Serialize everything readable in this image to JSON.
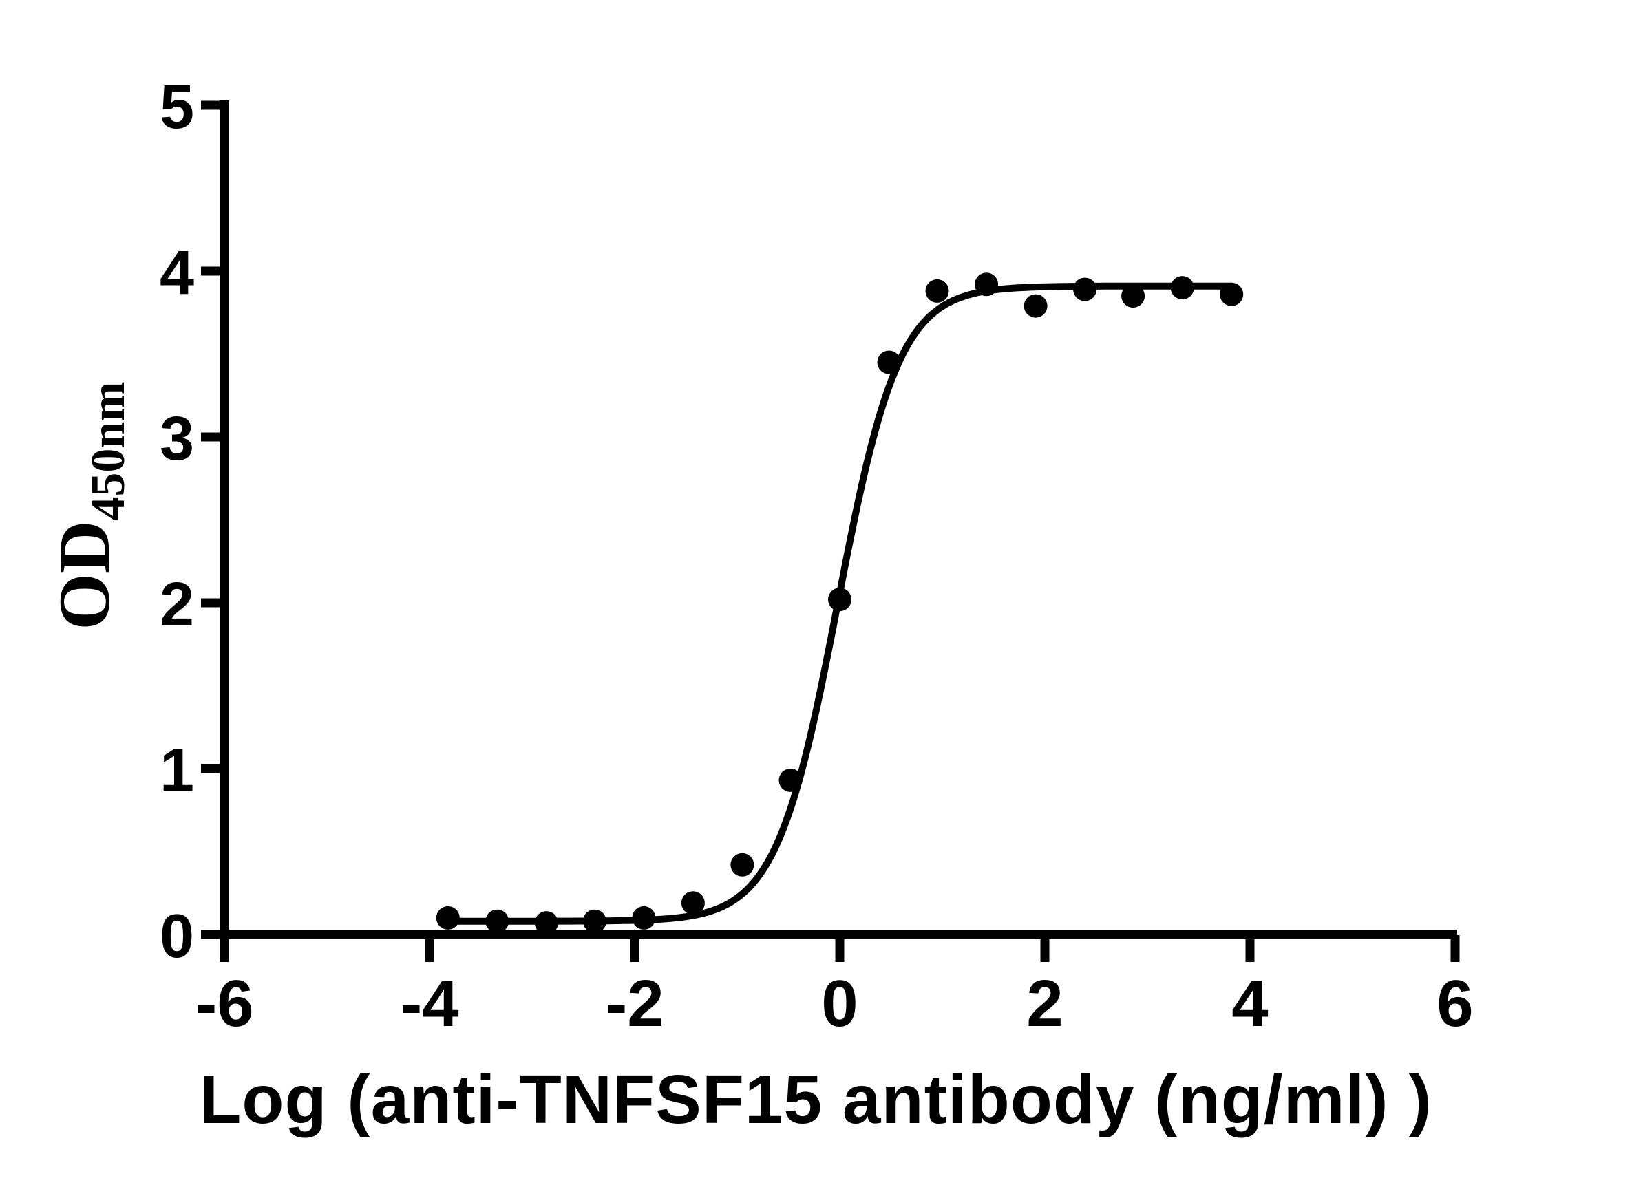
{
  "figure": {
    "background_color": "#ffffff",
    "foreground_color": "#000000"
  },
  "chart_data": {
    "type": "scatter",
    "title": "",
    "xlabel": "Log (anti-TNFSF15 antibody (ng/ml) )",
    "ylabel": "OD450nm",
    "ylabel_main": "OD",
    "ylabel_subscript": "450nm",
    "xlim": [
      -6,
      6
    ],
    "ylim": [
      0,
      5
    ],
    "x_ticks": [
      -6,
      -4,
      -2,
      0,
      2,
      4,
      6
    ],
    "y_ticks": [
      0,
      1,
      2,
      3,
      4,
      5
    ],
    "grid": false,
    "legend_position": "none",
    "marker": "filled-circle",
    "marker_color": "#000000",
    "curve_color": "#000000",
    "series": [
      {
        "name": "anti-TNFSF15 antibody",
        "points": [
          {
            "x": -3.82,
            "y": 0.1
          },
          {
            "x": -3.34,
            "y": 0.08
          },
          {
            "x": -2.86,
            "y": 0.07
          },
          {
            "x": -2.39,
            "y": 0.08
          },
          {
            "x": -1.91,
            "y": 0.1
          },
          {
            "x": -1.43,
            "y": 0.19
          },
          {
            "x": -0.95,
            "y": 0.42
          },
          {
            "x": -0.48,
            "y": 0.93
          },
          {
            "x": 0.0,
            "y": 2.02
          },
          {
            "x": 0.48,
            "y": 3.45
          },
          {
            "x": 0.95,
            "y": 3.88
          },
          {
            "x": 1.43,
            "y": 3.92
          },
          {
            "x": 1.91,
            "y": 3.79
          },
          {
            "x": 2.39,
            "y": 3.89
          },
          {
            "x": 2.86,
            "y": 3.85
          },
          {
            "x": 3.34,
            "y": 3.9
          },
          {
            "x": 3.82,
            "y": 3.86
          }
        ]
      }
    ],
    "fit_curve": {
      "model": "4PL-sigmoid",
      "bottom": 0.08,
      "top": 3.91,
      "log_ec50": -0.02,
      "hill_slope": 1.45,
      "x_start": -3.82,
      "x_end": 3.82
    }
  }
}
